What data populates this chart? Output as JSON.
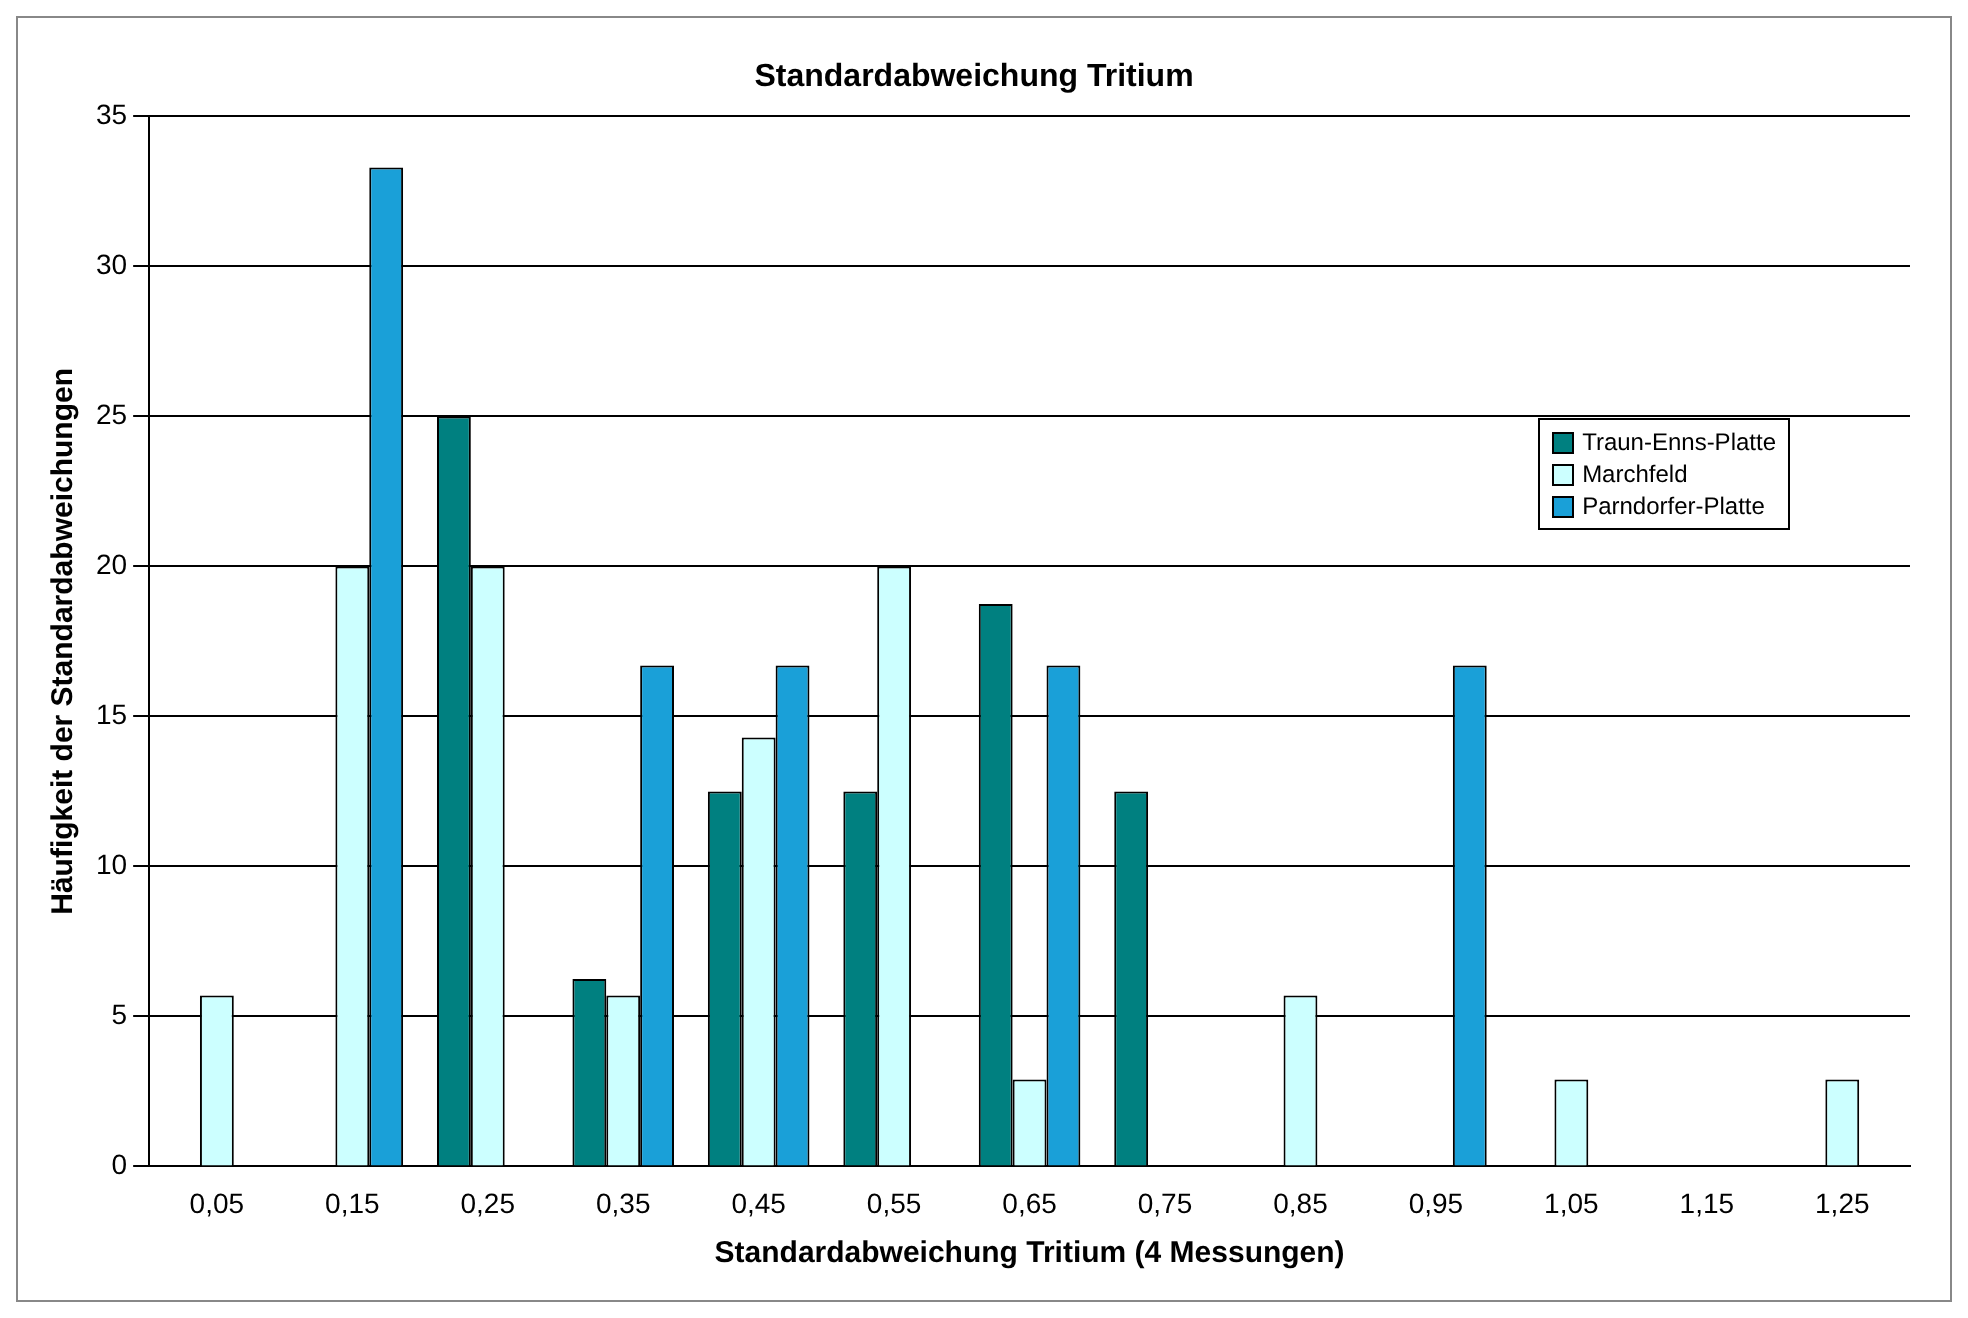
{
  "chart_data": {
    "type": "bar",
    "title": "Standardabweichung Tritium",
    "xlabel": "Standardabweichung Tritium (4 Messungen)",
    "ylabel": "Häufigkeit der Standardabweichungen",
    "categories": [
      "0,05",
      "0,15",
      "0,25",
      "0,35",
      "0,45",
      "0,55",
      "0,65",
      "0,75",
      "0,85",
      "0,95",
      "1,05",
      "1,15",
      "1,25"
    ],
    "series": [
      {
        "name": "Traun-Enns-Platte",
        "color": "#008080",
        "values": [
          0,
          0,
          25,
          6.25,
          12.5,
          12.5,
          18.75,
          12.5,
          0,
          0,
          0,
          0,
          0
        ]
      },
      {
        "name": "Marchfeld",
        "color": "#ccffff",
        "values": [
          5.7,
          20,
          20,
          5.7,
          14.3,
          20,
          2.9,
          0,
          5.7,
          0,
          2.9,
          0,
          2.9
        ]
      },
      {
        "name": "Parndorfer-Platte",
        "color": "#1aa0d8",
        "values": [
          0,
          33.3,
          0,
          16.7,
          16.7,
          0,
          16.7,
          0,
          0,
          16.7,
          0,
          0,
          0
        ]
      }
    ],
    "ylim": [
      0,
      35
    ],
    "yticks": [
      0,
      5,
      10,
      15,
      20,
      25,
      30,
      35
    ],
    "grid": "y",
    "legend": "top right"
  }
}
